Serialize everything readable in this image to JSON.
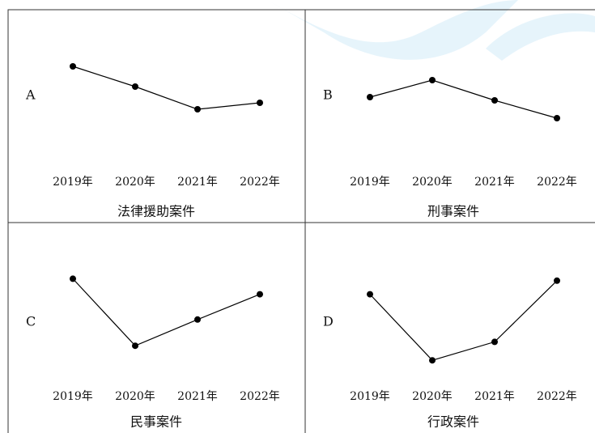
{
  "chart_data": [
    {
      "type": "line",
      "label": "A",
      "title": "法律援助案件",
      "categories": [
        "2019年",
        "2020年",
        "2021年",
        "2022年"
      ],
      "values": [
        78,
        53,
        25,
        33
      ],
      "ylim": [
        0,
        100
      ],
      "color": "#000000"
    },
    {
      "type": "line",
      "label": "B",
      "title": "刑事案件",
      "categories": [
        "2019年",
        "2020年",
        "2021年",
        "2022年"
      ],
      "values": [
        40,
        61,
        36,
        14
      ],
      "ylim": [
        0,
        100
      ],
      "color": "#000000"
    },
    {
      "type": "line",
      "label": "C",
      "title": "民事案件",
      "categories": [
        "2019年",
        "2020年",
        "2021年",
        "2022年"
      ],
      "values": [
        88,
        19,
        46,
        72
      ],
      "ylim": [
        0,
        100
      ],
      "color": "#000000"
    },
    {
      "type": "line",
      "label": "D",
      "title": "行政案件",
      "categories": [
        "2019年",
        "2020年",
        "2021年",
        "2022年"
      ],
      "values": [
        72,
        4,
        23,
        86
      ],
      "ylim": [
        0,
        100
      ],
      "color": "#000000"
    }
  ]
}
